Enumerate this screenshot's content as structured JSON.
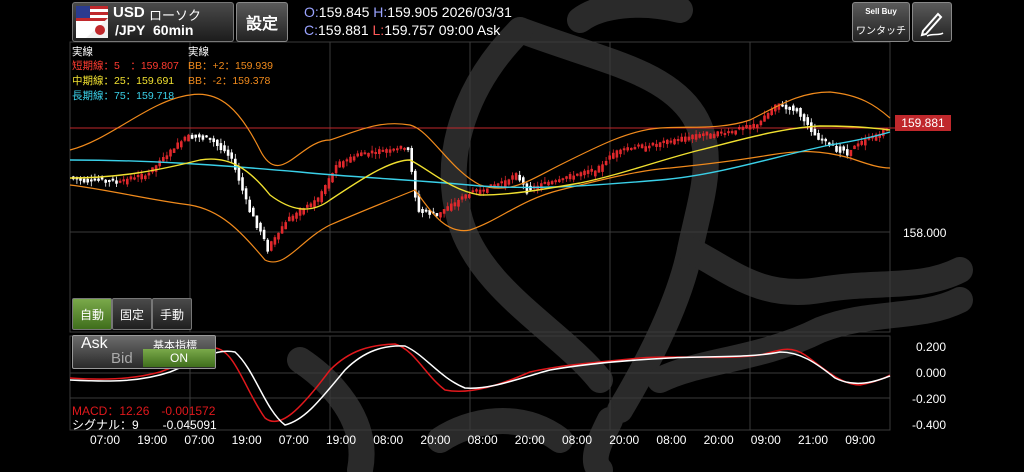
{
  "header": {
    "pair_top": "USD",
    "chart_kind": "ローソク",
    "pair_bottom": "/JPY",
    "timeframe": "60min",
    "settings_label": "設定",
    "open_label": "O:",
    "open_value": "159.845",
    "high_label": "H:",
    "high_value": "159.905",
    "date": "2026/03/31",
    "close_label": "C:",
    "close_value": "159.881",
    "low_label": "L:",
    "low_value": "159.757",
    "time": "09:00",
    "side": "Ask",
    "onetouch_top": "Sell Buy",
    "onetouch_label": "ワンタッチ"
  },
  "legend": {
    "col1_title": "実線",
    "col2_title": "実線",
    "ma_short": "短期線：5　：159.807",
    "ma_mid": "中期線：25：159.691",
    "ma_long": "長期線：75：159.718",
    "bb_plus": "BB：+2：159.939",
    "bb_minus": "BB：-2：159.378"
  },
  "mode_buttons": [
    {
      "label": "自動",
      "active": true
    },
    {
      "label": "固定",
      "active": false
    },
    {
      "label": "手動",
      "active": false
    }
  ],
  "askbid": {
    "ask": "Ask",
    "bid": "Bid",
    "indicator_label": "基本指標",
    "indicator_state": "ON"
  },
  "price_axis": {
    "current": "159.881",
    "level": "158.000"
  },
  "macd": {
    "label": "MACD：12.26　-0.001572",
    "signal": "シグナル：9　　-0.045091",
    "axis": [
      "0.200",
      "0.000",
      "-0.200",
      "-0.400"
    ]
  },
  "time_axis": [
    "07:00",
    "19:00",
    "07:00",
    "19:00",
    "07:00",
    "19:00",
    "08:00",
    "20:00",
    "08:00",
    "20:00",
    "08:00",
    "20:00",
    "08:00",
    "20:00",
    "09:00",
    "21:00",
    "09:00"
  ],
  "colors": {
    "ma_short": "#ff3b30",
    "ma_mid": "#f0e030",
    "ma_long": "#3ad0e8",
    "bb": "#f08a1c",
    "price_line": "#c0282c",
    "macd": "#e0181c",
    "signal": "#ffffff",
    "bull": "#e0282c",
    "bear": "#ffffff"
  }
}
